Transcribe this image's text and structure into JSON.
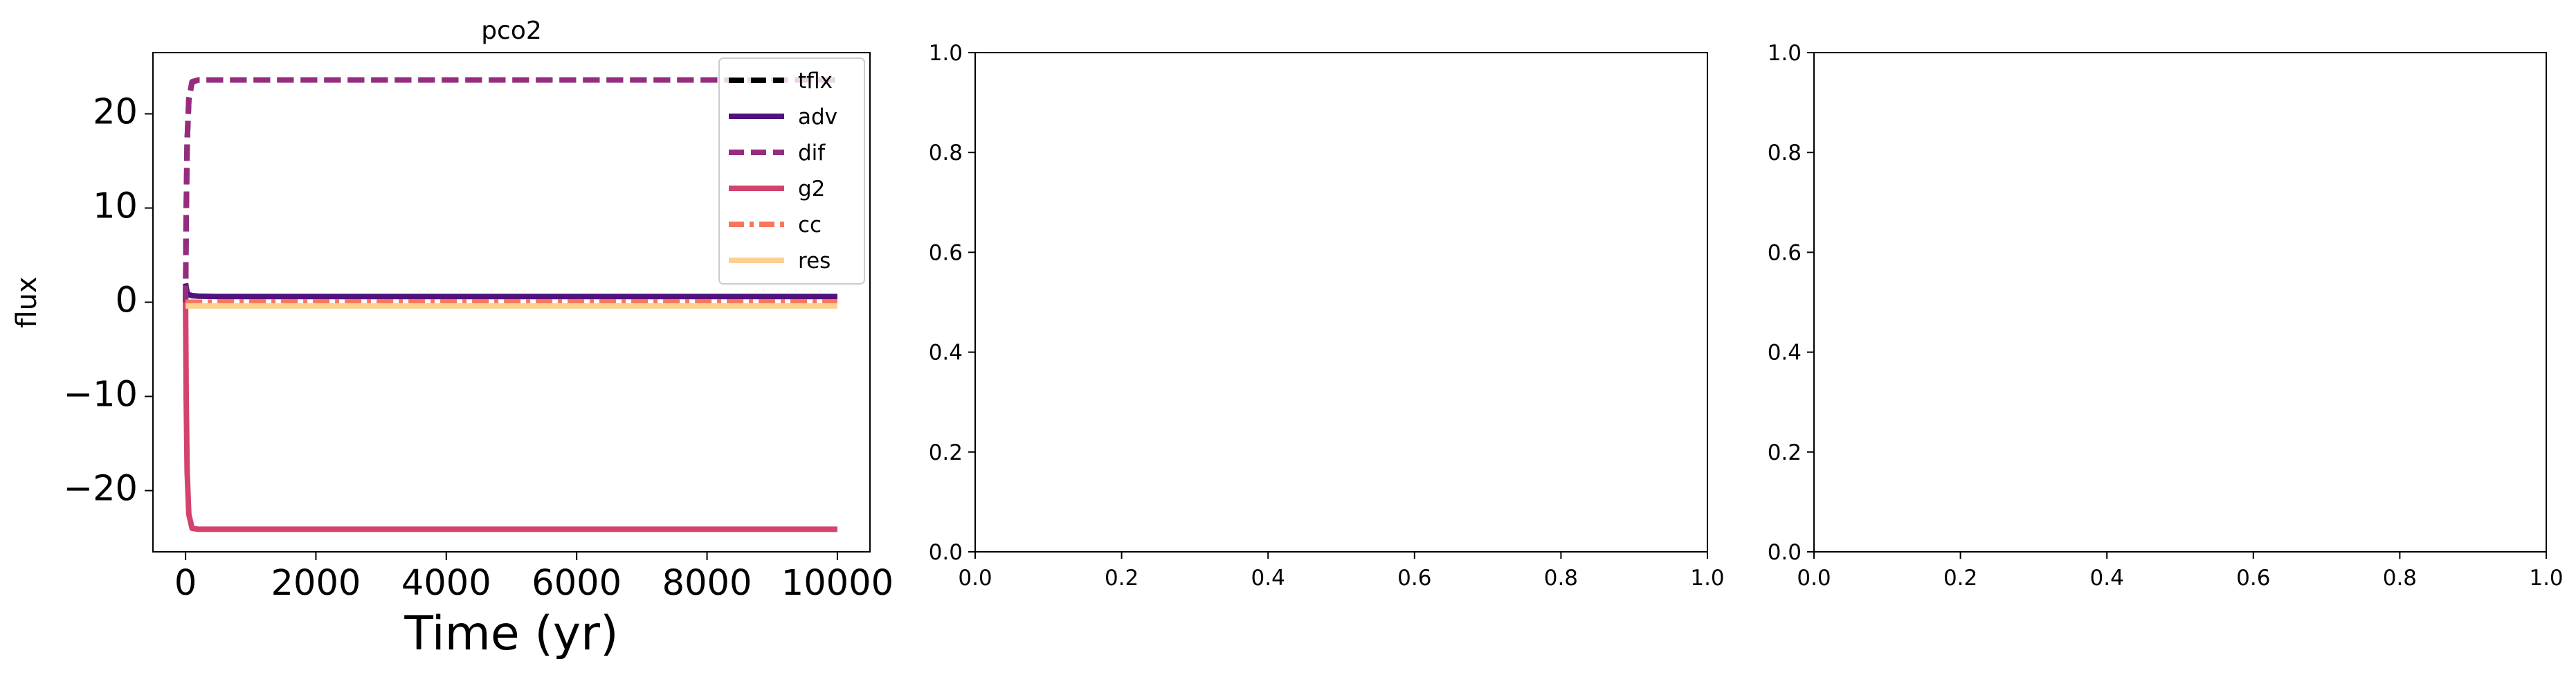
{
  "chart_data": [
    {
      "type": "line",
      "title": "pco2",
      "xlabel": "Time (yr)",
      "ylabel": "flux",
      "xlim": [
        -500,
        10500
      ],
      "ylim": [
        -26.5,
        26.5
      ],
      "xticks": [
        0,
        2000,
        4000,
        6000,
        8000,
        10000
      ],
      "xtick_labels": [
        "0",
        "2000",
        "4000",
        "6000",
        "8000",
        "10000"
      ],
      "yticks": [
        -20,
        -10,
        0,
        10,
        20
      ],
      "ytick_labels": [
        "−20",
        "−10",
        "0",
        "10",
        "20"
      ],
      "grid": false,
      "legend_position": "top-right",
      "series": [
        {
          "name": "tflx",
          "color": "#000004",
          "style": "dashed",
          "x": [
            0,
            10,
            25,
            50,
            100,
            200,
            500,
            10000
          ],
          "y": [
            0,
            9,
            17,
            21.5,
            23.4,
            23.6,
            23.6,
            23.6
          ]
        },
        {
          "name": "adv",
          "color": "#51127c",
          "style": "solid",
          "x": [
            0,
            25,
            50,
            100,
            200,
            500,
            2000,
            10000
          ],
          "y": [
            2,
            1.0,
            0.8,
            0.7,
            0.65,
            0.6,
            0.6,
            0.6
          ]
        },
        {
          "name": "dif",
          "color": "#972c7f",
          "style": "dashed",
          "x": [
            0,
            10,
            25,
            50,
            100,
            200,
            500,
            10000
          ],
          "y": [
            0,
            9,
            17,
            21.5,
            23.4,
            23.6,
            23.6,
            23.6
          ]
        },
        {
          "name": "g2",
          "color": "#d3436e",
          "style": "solid",
          "x": [
            0,
            10,
            25,
            50,
            100,
            200,
            500,
            10000
          ],
          "y": [
            0,
            -10,
            -18,
            -22.5,
            -24.0,
            -24.1,
            -24.1,
            -24.1
          ]
        },
        {
          "name": "cc",
          "color": "#f8765c",
          "style": "dashdot",
          "x": [
            0,
            10000
          ],
          "y": [
            0,
            0
          ]
        },
        {
          "name": "res",
          "color": "#fcd08f",
          "style": "solid",
          "x": [
            0,
            10000
          ],
          "y": [
            -0.4,
            -0.4
          ]
        }
      ]
    },
    {
      "type": "line",
      "title": "",
      "xlabel": "",
      "ylabel": "",
      "xlim": [
        0,
        1
      ],
      "ylim": [
        0,
        1
      ],
      "xtick_labels": [
        "0.0",
        "0.2",
        "0.4",
        "0.6",
        "0.8",
        "1.0"
      ],
      "ytick_labels": [
        "0.0",
        "0.2",
        "0.4",
        "0.6",
        "0.8",
        "1.0"
      ],
      "grid": false,
      "series": []
    },
    {
      "type": "line",
      "title": "",
      "xlabel": "",
      "ylabel": "",
      "xlim": [
        0,
        1
      ],
      "ylim": [
        0,
        1
      ],
      "xtick_labels": [
        "0.0",
        "0.2",
        "0.4",
        "0.6",
        "0.8",
        "1.0"
      ],
      "ytick_labels": [
        "0.0",
        "0.2",
        "0.4",
        "0.6",
        "0.8",
        "1.0"
      ],
      "grid": false,
      "series": []
    }
  ]
}
